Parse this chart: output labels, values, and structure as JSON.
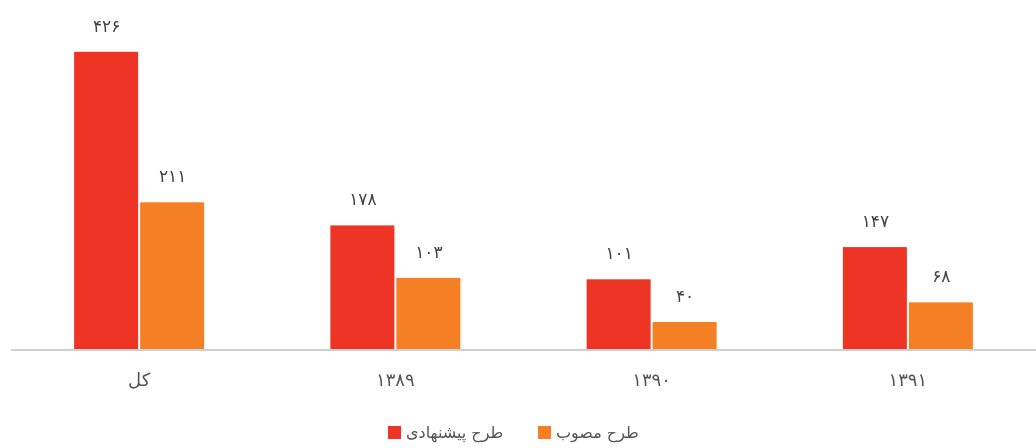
{
  "chart_data": {
    "type": "bar",
    "categories": [
      "کل",
      "۱۳۸۹",
      "۱۳۹۰",
      "۱۳۹۱"
    ],
    "series": [
      {
        "name": "طرح پیشنهادی",
        "color": "#ee3424",
        "values": [
          426,
          178,
          101,
          147
        ],
        "value_labels": [
          "۴۲۶",
          "۱۷۸",
          "۱۰۱",
          "۱۴۷"
        ]
      },
      {
        "name": "طرح مصوب",
        "color": "#f47f24",
        "values": [
          211,
          103,
          40,
          68
        ],
        "value_labels": [
          "۲۱۱",
          "۱۰۳",
          "۴۰",
          "۶۸"
        ]
      }
    ],
    "ylim": [
      0,
      500
    ],
    "legend": "bottom",
    "grid": false
  }
}
